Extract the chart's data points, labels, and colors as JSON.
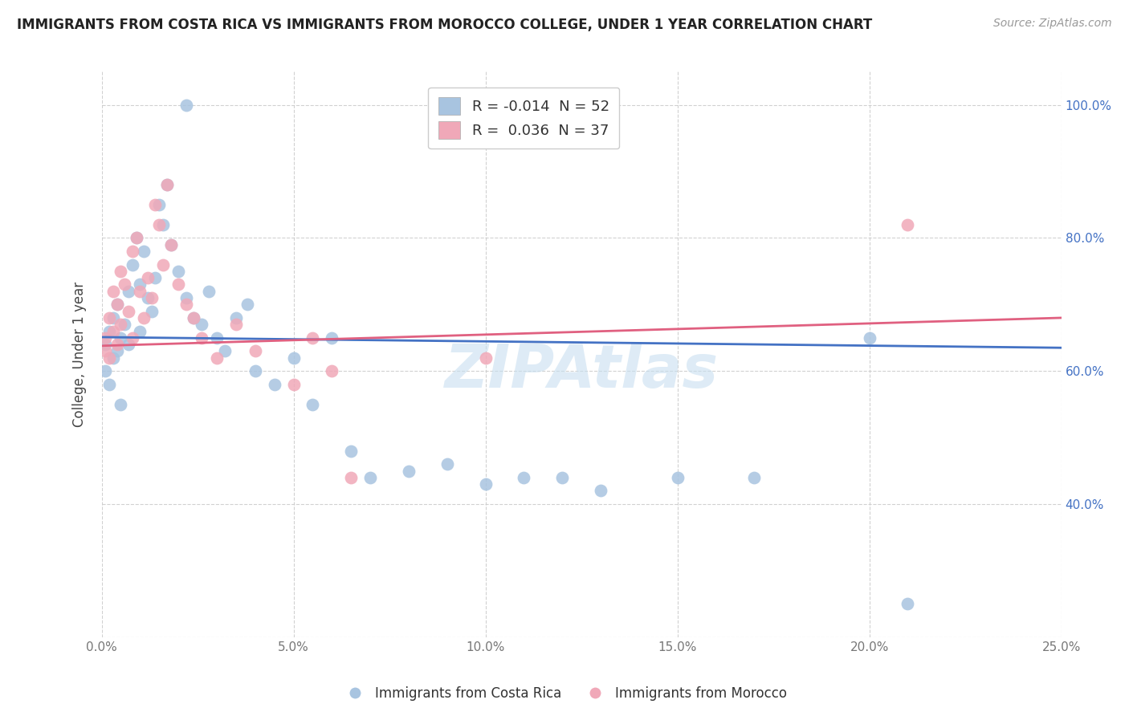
{
  "title": "IMMIGRANTS FROM COSTA RICA VS IMMIGRANTS FROM MOROCCO COLLEGE, UNDER 1 YEAR CORRELATION CHART",
  "source": "Source: ZipAtlas.com",
  "ylabel": "College, Under 1 year",
  "xlim": [
    0.0,
    0.25
  ],
  "ylim": [
    0.2,
    1.05
  ],
  "xticks": [
    0.0,
    0.05,
    0.1,
    0.15,
    0.2,
    0.25
  ],
  "yticks": [
    0.2,
    0.4,
    0.6,
    0.8,
    1.0
  ],
  "xticklabels": [
    "0.0%",
    "5.0%",
    "10.0%",
    "15.0%",
    "20.0%",
    "25.0%"
  ],
  "yticklabels_right": [
    "40.0%",
    "60.0%",
    "80.0%",
    "100.0%"
  ],
  "yticks_right": [
    0.4,
    0.6,
    0.8,
    1.0
  ],
  "blue_color": "#a8c4e0",
  "pink_color": "#f0a8b8",
  "blue_line_color": "#4472c4",
  "pink_line_color": "#e06080",
  "legend_blue_label": "R = -0.014  N = 52",
  "legend_pink_label": "R =  0.036  N = 37",
  "blue_line_x": [
    0.0,
    0.25
  ],
  "blue_line_y": [
    0.651,
    0.635
  ],
  "pink_line_x": [
    0.0,
    0.25
  ],
  "pink_line_y": [
    0.638,
    0.68
  ],
  "blue_scatter_x": [
    0.022,
    0.001,
    0.001,
    0.002,
    0.002,
    0.003,
    0.003,
    0.004,
    0.004,
    0.005,
    0.005,
    0.006,
    0.007,
    0.007,
    0.008,
    0.009,
    0.01,
    0.01,
    0.011,
    0.012,
    0.013,
    0.014,
    0.015,
    0.016,
    0.017,
    0.018,
    0.02,
    0.022,
    0.024,
    0.026,
    0.028,
    0.03,
    0.032,
    0.035,
    0.038,
    0.04,
    0.045,
    0.05,
    0.055,
    0.06,
    0.065,
    0.07,
    0.08,
    0.09,
    0.1,
    0.11,
    0.13,
    0.15,
    0.17,
    0.2,
    0.21,
    0.12
  ],
  "blue_scatter_y": [
    1.0,
    0.64,
    0.6,
    0.58,
    0.66,
    0.62,
    0.68,
    0.7,
    0.63,
    0.65,
    0.55,
    0.67,
    0.64,
    0.72,
    0.76,
    0.8,
    0.73,
    0.66,
    0.78,
    0.71,
    0.69,
    0.74,
    0.85,
    0.82,
    0.88,
    0.79,
    0.75,
    0.71,
    0.68,
    0.67,
    0.72,
    0.65,
    0.63,
    0.68,
    0.7,
    0.6,
    0.58,
    0.62,
    0.55,
    0.65,
    0.48,
    0.44,
    0.45,
    0.46,
    0.43,
    0.44,
    0.42,
    0.44,
    0.44,
    0.65,
    0.25,
    0.44
  ],
  "pink_scatter_x": [
    0.001,
    0.001,
    0.002,
    0.002,
    0.003,
    0.003,
    0.004,
    0.004,
    0.005,
    0.005,
    0.006,
    0.007,
    0.008,
    0.008,
    0.009,
    0.01,
    0.011,
    0.012,
    0.013,
    0.014,
    0.015,
    0.016,
    0.017,
    0.018,
    0.02,
    0.022,
    0.024,
    0.026,
    0.03,
    0.035,
    0.04,
    0.05,
    0.055,
    0.06,
    0.065,
    0.21,
    0.1
  ],
  "pink_scatter_y": [
    0.65,
    0.63,
    0.68,
    0.62,
    0.72,
    0.66,
    0.7,
    0.64,
    0.75,
    0.67,
    0.73,
    0.69,
    0.78,
    0.65,
    0.8,
    0.72,
    0.68,
    0.74,
    0.71,
    0.85,
    0.82,
    0.76,
    0.88,
    0.79,
    0.73,
    0.7,
    0.68,
    0.65,
    0.62,
    0.67,
    0.63,
    0.58,
    0.65,
    0.6,
    0.44,
    0.82,
    0.62
  ],
  "watermark_text": "ZIPAtlas",
  "background_color": "#ffffff",
  "grid_color": "#cccccc",
  "right_tick_color": "#4472c4"
}
